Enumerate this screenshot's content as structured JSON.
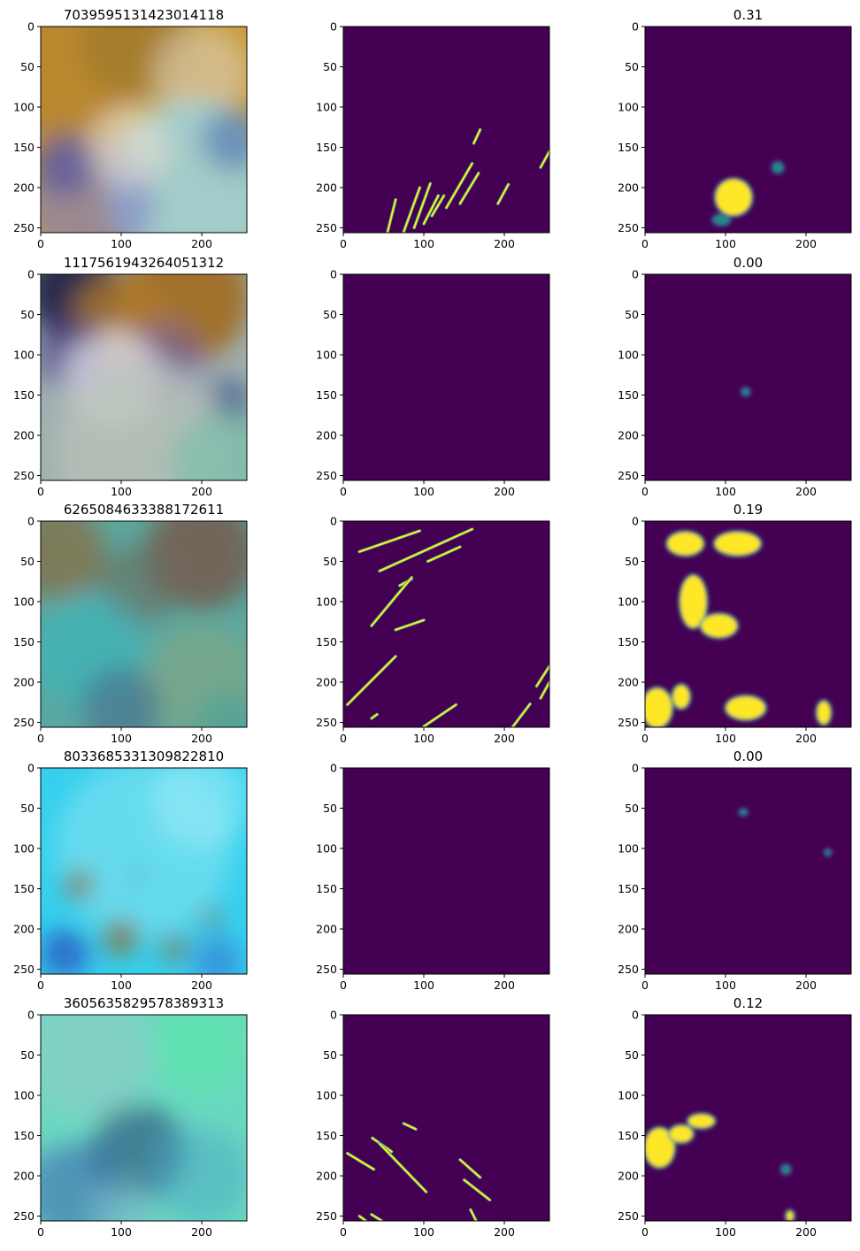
{
  "chart_data": {
    "type": "image-grid",
    "rows": 5,
    "columns": 3,
    "axes": {
      "x_ticks": [
        0,
        100,
        200
      ],
      "y_ticks": [
        0,
        50,
        100,
        150,
        200,
        250
      ],
      "xlim": [
        0,
        256
      ],
      "ylim": [
        256,
        0
      ]
    },
    "colors": {
      "mask_background": "#440154",
      "mask_foreground": "#fde725",
      "mask_mid": "#21918c",
      "mask_edge": "#3b528b"
    },
    "rows_data": [
      {
        "image_title": "7039595131423014118",
        "mask_title": "",
        "pred_title": "0.31",
        "false_color": {
          "base": "#c79a3a",
          "patches": [
            {
              "x": 0,
              "y": 0,
              "r": 140,
              "color": "#b8862e",
              "opacity": 0.9
            },
            {
              "x": 120,
              "y": 20,
              "r": 70,
              "color": "#a07a2c",
              "opacity": 0.8
            },
            {
              "x": 200,
              "y": 60,
              "r": 60,
              "color": "#d8c8a8",
              "opacity": 0.7
            },
            {
              "x": 190,
              "y": 200,
              "r": 110,
              "color": "#9fd0d8",
              "opacity": 0.9
            },
            {
              "x": 60,
              "y": 220,
              "r": 80,
              "color": "#7f7fc8",
              "opacity": 0.6
            },
            {
              "x": 30,
              "y": 170,
              "r": 40,
              "color": "#4a4aa0",
              "opacity": 0.6
            },
            {
              "x": 110,
              "y": 150,
              "r": 50,
              "color": "#e8e0d0",
              "opacity": 0.6
            },
            {
              "x": 240,
              "y": 140,
              "r": 40,
              "color": "#3a5ea8",
              "opacity": 0.5
            }
          ]
        },
        "mask_segments": [
          {
            "x1": 55,
            "y1": 255,
            "x2": 65,
            "y2": 215
          },
          {
            "x1": 75,
            "y1": 255,
            "x2": 95,
            "y2": 200
          },
          {
            "x1": 88,
            "y1": 250,
            "x2": 108,
            "y2": 195
          },
          {
            "x1": 100,
            "y1": 245,
            "x2": 118,
            "y2": 210
          },
          {
            "x1": 110,
            "y1": 235,
            "x2": 125,
            "y2": 210
          },
          {
            "x1": 128,
            "y1": 225,
            "x2": 160,
            "y2": 170
          },
          {
            "x1": 145,
            "y1": 220,
            "x2": 168,
            "y2": 182
          },
          {
            "x1": 162,
            "y1": 145,
            "x2": 170,
            "y2": 128
          },
          {
            "x1": 192,
            "y1": 220,
            "x2": 205,
            "y2": 196
          },
          {
            "x1": 245,
            "y1": 175,
            "x2": 256,
            "y2": 155
          }
        ],
        "pred_blobs": [
          {
            "x": 110,
            "y": 212,
            "rx": 22,
            "ry": 22,
            "value": 1.0
          },
          {
            "x": 95,
            "y": 240,
            "rx": 10,
            "ry": 6,
            "value": 0.4
          },
          {
            "x": 165,
            "y": 175,
            "rx": 6,
            "ry": 6,
            "value": 0.3
          }
        ]
      },
      {
        "image_title": "1117561943264051312",
        "mask_title": "",
        "pred_title": "0.00",
        "false_color": {
          "base": "#9fb0b0",
          "patches": [
            {
              "x": 40,
              "y": 20,
              "r": 60,
              "color": "#202040",
              "opacity": 0.9
            },
            {
              "x": 180,
              "y": 30,
              "r": 80,
              "color": "#a06a20",
              "opacity": 0.9
            },
            {
              "x": 100,
              "y": 60,
              "r": 60,
              "color": "#b07a2a",
              "opacity": 0.8
            },
            {
              "x": 40,
              "y": 100,
              "r": 45,
              "color": "#4a3a8a",
              "opacity": 0.7
            },
            {
              "x": 150,
              "y": 110,
              "r": 50,
              "color": "#6f5fb0",
              "opacity": 0.6
            },
            {
              "x": 90,
              "y": 130,
              "r": 60,
              "color": "#e8e8f0",
              "opacity": 0.7
            },
            {
              "x": 230,
              "y": 160,
              "r": 30,
              "color": "#2a4a8a",
              "opacity": 0.7
            },
            {
              "x": 128,
              "y": 220,
              "r": 110,
              "color": "#b8c0b8",
              "opacity": 0.8
            },
            {
              "x": 230,
              "y": 240,
              "r": 70,
              "color": "#70c0a8",
              "opacity": 0.6
            }
          ]
        },
        "mask_segments": [],
        "pred_blobs": [
          {
            "x": 125,
            "y": 146,
            "rx": 4,
            "ry": 4,
            "value": 0.6
          }
        ]
      },
      {
        "image_title": "6265084633388172611",
        "mask_title": "",
        "pred_title": "0.19",
        "false_color": {
          "base": "#5aa8a0",
          "patches": [
            {
              "x": 20,
              "y": 40,
              "r": 60,
              "color": "#8a6a3a",
              "opacity": 0.7
            },
            {
              "x": 200,
              "y": 40,
              "r": 70,
              "color": "#7a4a3a",
              "opacity": 0.7
            },
            {
              "x": 120,
              "y": 80,
              "r": 50,
              "color": "#6a6a5a",
              "opacity": 0.6
            },
            {
              "x": 60,
              "y": 160,
              "r": 70,
              "color": "#38b8c0",
              "opacity": 0.6
            },
            {
              "x": 200,
              "y": 200,
              "r": 70,
              "color": "#88a880",
              "opacity": 0.6
            },
            {
              "x": 100,
              "y": 230,
              "r": 50,
              "color": "#4a6a8a",
              "opacity": 0.6
            },
            {
              "x": 230,
              "y": 250,
              "r": 40,
              "color": "#4aa098",
              "opacity": 0.6
            }
          ]
        },
        "mask_segments": [
          {
            "x1": 20,
            "y1": 38,
            "x2": 95,
            "y2": 12
          },
          {
            "x1": 45,
            "y1": 62,
            "x2": 160,
            "y2": 10
          },
          {
            "x1": 105,
            "y1": 50,
            "x2": 145,
            "y2": 32
          },
          {
            "x1": 70,
            "y1": 80,
            "x2": 85,
            "y2": 72
          },
          {
            "x1": 35,
            "y1": 130,
            "x2": 85,
            "y2": 70
          },
          {
            "x1": 65,
            "y1": 135,
            "x2": 100,
            "y2": 123
          },
          {
            "x1": 5,
            "y1": 228,
            "x2": 65,
            "y2": 168
          },
          {
            "x1": 35,
            "y1": 245,
            "x2": 42,
            "y2": 240
          },
          {
            "x1": 100,
            "y1": 255,
            "x2": 140,
            "y2": 228
          },
          {
            "x1": 210,
            "y1": 256,
            "x2": 232,
            "y2": 227
          },
          {
            "x1": 240,
            "y1": 205,
            "x2": 256,
            "y2": 180
          },
          {
            "x1": 245,
            "y1": 220,
            "x2": 256,
            "y2": 200
          }
        ],
        "pred_blobs": [
          {
            "x": 50,
            "y": 28,
            "rx": 22,
            "ry": 14,
            "value": 1.0
          },
          {
            "x": 115,
            "y": 28,
            "rx": 28,
            "ry": 14,
            "value": 1.0
          },
          {
            "x": 60,
            "y": 100,
            "rx": 16,
            "ry": 32,
            "value": 1.0
          },
          {
            "x": 92,
            "y": 130,
            "rx": 22,
            "ry": 14,
            "value": 1.0
          },
          {
            "x": 15,
            "y": 232,
            "rx": 18,
            "ry": 24,
            "value": 1.0
          },
          {
            "x": 45,
            "y": 218,
            "rx": 10,
            "ry": 14,
            "value": 0.9
          },
          {
            "x": 125,
            "y": 232,
            "rx": 24,
            "ry": 14,
            "value": 1.0
          },
          {
            "x": 222,
            "y": 238,
            "rx": 8,
            "ry": 14,
            "value": 0.9
          }
        ]
      },
      {
        "image_title": "8033685331309822810",
        "mask_title": "",
        "pred_title": "0.00",
        "false_color": {
          "base": "#35d0ee",
          "patches": [
            {
              "x": 128,
              "y": 100,
              "r": 110,
              "color": "#7ae0f0",
              "opacity": 0.7
            },
            {
              "x": 200,
              "y": 40,
              "r": 60,
              "color": "#a8f0f8",
              "opacity": 0.5
            },
            {
              "x": 48,
              "y": 145,
              "r": 18,
              "color": "#8a6a2a",
              "opacity": 0.9
            },
            {
              "x": 100,
              "y": 210,
              "r": 22,
              "color": "#8a6a2a",
              "opacity": 0.9
            },
            {
              "x": 165,
              "y": 222,
              "r": 16,
              "color": "#8a6a2a",
              "opacity": 0.9
            },
            {
              "x": 210,
              "y": 185,
              "r": 12,
              "color": "#8a6a2a",
              "opacity": 0.9
            },
            {
              "x": 30,
              "y": 230,
              "r": 30,
              "color": "#2a2ab0",
              "opacity": 0.6
            },
            {
              "x": 120,
              "y": 135,
              "r": 6,
              "color": "#1010a0",
              "opacity": 0.9
            },
            {
              "x": 220,
              "y": 240,
              "r": 30,
              "color": "#3a5ac8",
              "opacity": 0.5
            }
          ]
        },
        "mask_segments": [],
        "pred_blobs": [
          {
            "x": 122,
            "y": 55,
            "rx": 4,
            "ry": 3,
            "value": 0.6
          },
          {
            "x": 227,
            "y": 105,
            "rx": 3,
            "ry": 3,
            "value": 0.6
          }
        ]
      },
      {
        "image_title": "3605635829578389313",
        "mask_title": "",
        "pred_title": "0.12",
        "false_color": {
          "base": "#6ad8c0",
          "patches": [
            {
              "x": 60,
              "y": 50,
              "r": 80,
              "color": "#8acfc8",
              "opacity": 0.7
            },
            {
              "x": 200,
              "y": 40,
              "r": 60,
              "color": "#5ae8a8",
              "opacity": 0.6
            },
            {
              "x": 120,
              "y": 170,
              "r": 60,
              "color": "#2a4a7a",
              "opacity": 0.6
            },
            {
              "x": 40,
              "y": 220,
              "r": 60,
              "color": "#3a6ab0",
              "opacity": 0.6
            },
            {
              "x": 200,
              "y": 200,
              "r": 60,
              "color": "#4aa8c8",
              "opacity": 0.5
            },
            {
              "x": 100,
              "y": 245,
              "r": 40,
              "color": "#7ab8c8",
              "opacity": 0.6
            }
          ]
        },
        "mask_segments": [
          {
            "x1": 5,
            "y1": 172,
            "x2": 38,
            "y2": 192
          },
          {
            "x1": 36,
            "y1": 153,
            "x2": 60,
            "y2": 170
          },
          {
            "x1": 45,
            "y1": 160,
            "x2": 103,
            "y2": 220
          },
          {
            "x1": 75,
            "y1": 135,
            "x2": 90,
            "y2": 142
          },
          {
            "x1": 145,
            "y1": 180,
            "x2": 170,
            "y2": 202
          },
          {
            "x1": 150,
            "y1": 205,
            "x2": 182,
            "y2": 230
          },
          {
            "x1": 35,
            "y1": 248,
            "x2": 48,
            "y2": 256
          },
          {
            "x1": 20,
            "y1": 250,
            "x2": 28,
            "y2": 256
          },
          {
            "x1": 158,
            "y1": 242,
            "x2": 165,
            "y2": 256
          }
        ],
        "pred_blobs": [
          {
            "x": 18,
            "y": 165,
            "rx": 18,
            "ry": 24,
            "value": 1.0
          },
          {
            "x": 45,
            "y": 148,
            "rx": 14,
            "ry": 10,
            "value": 0.9
          },
          {
            "x": 70,
            "y": 132,
            "rx": 16,
            "ry": 8,
            "value": 1.0
          },
          {
            "x": 180,
            "y": 250,
            "rx": 4,
            "ry": 6,
            "value": 0.8
          },
          {
            "x": 175,
            "y": 192,
            "rx": 5,
            "ry": 5,
            "value": 0.4
          }
        ]
      }
    ]
  }
}
